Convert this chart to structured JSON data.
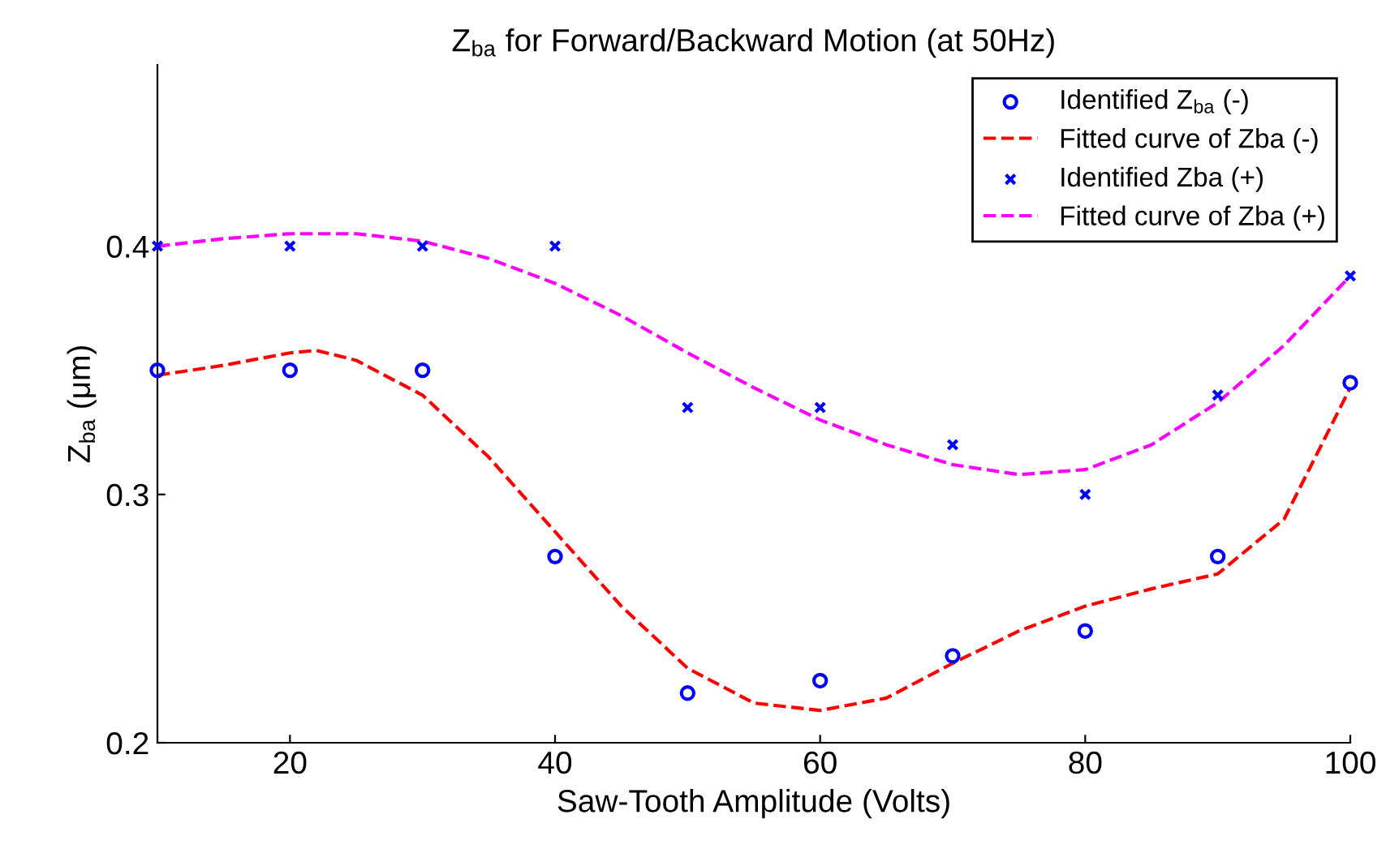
{
  "chart_data": {
    "type": "scatter",
    "title": "Z$_{ba}$ for Forward/Backward Motion (at 50Hz)",
    "xlabel": "Saw-Tooth Amplitude (Volts)",
    "ylabel": "Z$_{ba}$ (μm)",
    "xlim": [
      10,
      100
    ],
    "xticks": [
      20,
      40,
      60,
      80,
      100
    ],
    "ylim": [
      0.2,
      0.473
    ],
    "yticks": [
      0.2,
      0.3,
      0.4
    ],
    "grid": false,
    "legend": "top right",
    "series": [
      {
        "name": "Identified Z$_{ba}$ (-)",
        "marker": "circle",
        "color": "#0000ff",
        "x": [
          10,
          20,
          30,
          40,
          50,
          60,
          70,
          80,
          90,
          100
        ],
        "values": [
          0.35,
          0.35,
          0.35,
          0.275,
          0.22,
          0.225,
          0.235,
          0.245,
          0.275,
          0.345
        ]
      },
      {
        "name": "Fitted curve of Zba (-)",
        "type": "line",
        "line_style": "dashed",
        "color": "#ff0000",
        "x": [
          10,
          15,
          20,
          22,
          25,
          30,
          35,
          40,
          45,
          50,
          55,
          60,
          65,
          70,
          75,
          80,
          85,
          90,
          95,
          100
        ],
        "values": [
          0.348,
          0.352,
          0.357,
          0.358,
          0.354,
          0.34,
          0.315,
          0.285,
          0.255,
          0.23,
          0.216,
          0.213,
          0.218,
          0.232,
          0.245,
          0.255,
          0.262,
          0.268,
          0.29,
          0.343
        ]
      },
      {
        "name": "Identified Zba (+)",
        "marker": "cross",
        "color": "#0000ff",
        "x": [
          10,
          20,
          30,
          40,
          50,
          60,
          70,
          80,
          90,
          100
        ],
        "values": [
          0.4,
          0.4,
          0.4,
          0.4,
          0.335,
          0.335,
          0.32,
          0.3,
          0.34,
          0.388
        ]
      },
      {
        "name": "Fitted curve of Zba (+)",
        "type": "line",
        "line_style": "dashed",
        "color": "#ff00ff",
        "x": [
          10,
          15,
          20,
          25,
          30,
          35,
          40,
          45,
          50,
          55,
          60,
          65,
          70,
          75,
          80,
          85,
          90,
          95,
          100
        ],
        "values": [
          0.4,
          0.403,
          0.405,
          0.405,
          0.402,
          0.395,
          0.385,
          0.372,
          0.357,
          0.343,
          0.33,
          0.32,
          0.312,
          0.308,
          0.31,
          0.32,
          0.337,
          0.36,
          0.388
        ]
      }
    ]
  }
}
